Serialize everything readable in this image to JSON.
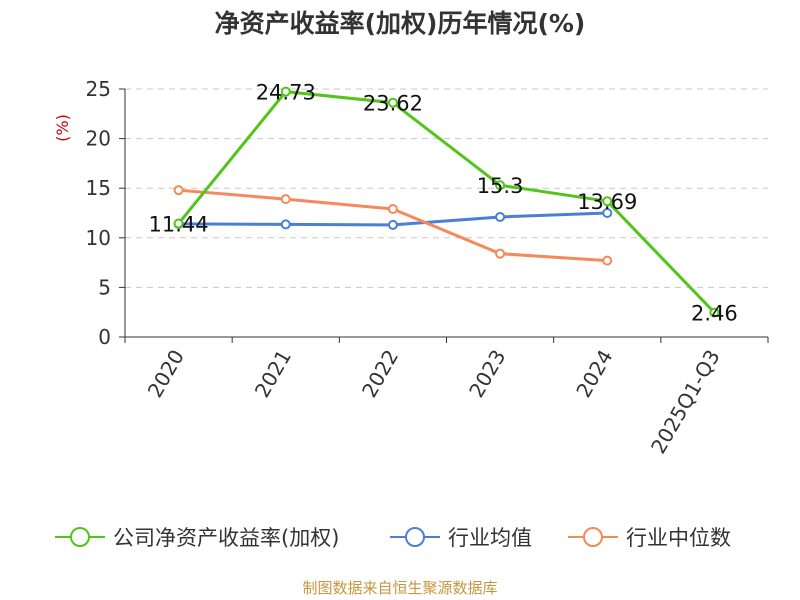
{
  "chart_data": {
    "type": "line",
    "title": "净资产收益率(加权)历年情况(%)",
    "ylabel": "(%)",
    "categories": [
      "2020",
      "2021",
      "2022",
      "2023",
      "2024",
      "2025Q1-Q3"
    ],
    "ylim": [
      0,
      25
    ],
    "yticks": [
      0,
      5,
      10,
      15,
      20,
      25
    ],
    "grid": "horizontal-dashed",
    "legend": "bottom",
    "series": [
      {
        "name": "公司净资产收益率(加权)",
        "color": "#52c41a",
        "values": [
          11.44,
          24.73,
          23.62,
          15.3,
          13.69,
          2.46
        ],
        "labels": [
          "11.44",
          "24.73",
          "23.62",
          "15.3",
          "13.69",
          "2.46"
        ]
      },
      {
        "name": "行业均值",
        "color": "#4a7fd6",
        "values": [
          11.4,
          11.35,
          11.3,
          12.1,
          12.5,
          null
        ]
      },
      {
        "name": "行业中位数",
        "color": "#f5895a",
        "values": [
          14.8,
          13.9,
          12.9,
          8.4,
          7.7,
          null
        ]
      }
    ]
  },
  "source": "制图数据来自恒生聚源数据库"
}
